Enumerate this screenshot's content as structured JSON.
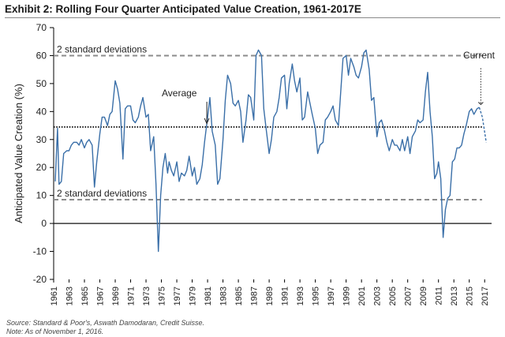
{
  "title": "Exhibit 2: Rolling Four Quarter Anticipated Value Creation, 1961-2017E",
  "footer": {
    "source": "Source: Standard & Poor's, Aswath Damodaran, Credit Suisse.",
    "note": "Note: As of November 1, 2016."
  },
  "colors": {
    "line": "#3A6FA8",
    "band": "#8c8c8c",
    "average": "#111111",
    "zero": "#111111"
  },
  "chart_data": {
    "type": "line",
    "title": "Exhibit 2: Rolling Four Quarter Anticipated Value Creation, 1961-2017E",
    "ylabel": "Anticipated Value Creation (%)",
    "xlabel": "",
    "xlim": [
      1961,
      2017.9
    ],
    "ylim": [
      -20,
      70
    ],
    "yticks": [
      -20,
      -10,
      0,
      10,
      20,
      30,
      40,
      50,
      60,
      70
    ],
    "xticks": [
      "1961",
      "1963",
      "1965",
      "1967",
      "1969",
      "1971",
      "1973",
      "1975",
      "1977",
      "1979",
      "1981",
      "1983",
      "1985",
      "1987",
      "1989",
      "1991",
      "1993",
      "1995",
      "1997",
      "1999",
      "2001",
      "2003",
      "2005",
      "2007",
      "2009",
      "2011",
      "2013",
      "2015",
      "2017"
    ],
    "grid": false,
    "reference_lines": [
      {
        "label": "2 standard deviations",
        "y": 60,
        "style": "dashed"
      },
      {
        "label": "Average",
        "y": 34.5,
        "style": "dotted"
      },
      {
        "label": "2 standard deviations",
        "y": 8.5,
        "style": "dashed"
      }
    ],
    "annotations": [
      {
        "text": "Current",
        "x": 2016.5,
        "y": 41
      }
    ],
    "series": [
      {
        "values": [
          [
            1961.2,
            15
          ],
          [
            1961.5,
            34
          ],
          [
            1961.7,
            14
          ],
          [
            1962.0,
            15
          ],
          [
            1962.3,
            25
          ],
          [
            1962.7,
            26
          ],
          [
            1963.0,
            26
          ],
          [
            1963.3,
            28
          ],
          [
            1963.6,
            29
          ],
          [
            1964.0,
            29
          ],
          [
            1964.3,
            28
          ],
          [
            1964.6,
            30
          ],
          [
            1965.0,
            27
          ],
          [
            1965.3,
            29
          ],
          [
            1965.6,
            30
          ],
          [
            1966.0,
            28
          ],
          [
            1966.3,
            13
          ],
          [
            1966.6,
            22
          ],
          [
            1967.0,
            32
          ],
          [
            1967.3,
            38
          ],
          [
            1967.6,
            38
          ],
          [
            1968.0,
            35
          ],
          [
            1968.3,
            39
          ],
          [
            1968.6,
            40
          ],
          [
            1969.0,
            51
          ],
          [
            1969.3,
            48
          ],
          [
            1969.6,
            43
          ],
          [
            1970.0,
            23
          ],
          [
            1970.3,
            41
          ],
          [
            1970.6,
            42
          ],
          [
            1971.0,
            42
          ],
          [
            1971.3,
            37
          ],
          [
            1971.6,
            36
          ],
          [
            1972.0,
            38
          ],
          [
            1972.3,
            42
          ],
          [
            1972.6,
            45
          ],
          [
            1973.0,
            38
          ],
          [
            1973.3,
            39
          ],
          [
            1973.6,
            26
          ],
          [
            1974.0,
            31
          ],
          [
            1974.3,
            14
          ],
          [
            1974.6,
            -10
          ],
          [
            1974.9,
            10
          ],
          [
            1975.2,
            20
          ],
          [
            1975.5,
            25
          ],
          [
            1975.8,
            18
          ],
          [
            1976.0,
            22
          ],
          [
            1976.3,
            19
          ],
          [
            1976.6,
            17
          ],
          [
            1977.0,
            22
          ],
          [
            1977.3,
            15
          ],
          [
            1977.6,
            18
          ],
          [
            1978.0,
            17
          ],
          [
            1978.3,
            19
          ],
          [
            1978.6,
            24
          ],
          [
            1979.0,
            17
          ],
          [
            1979.3,
            20
          ],
          [
            1979.6,
            14
          ],
          [
            1980.0,
            16
          ],
          [
            1980.3,
            21
          ],
          [
            1980.6,
            29
          ],
          [
            1981.0,
            38
          ],
          [
            1981.3,
            45
          ],
          [
            1981.6,
            33
          ],
          [
            1982.0,
            28
          ],
          [
            1982.3,
            14
          ],
          [
            1982.6,
            16
          ],
          [
            1983.0,
            30
          ],
          [
            1983.3,
            44
          ],
          [
            1983.6,
            53
          ],
          [
            1984.0,
            50
          ],
          [
            1984.3,
            43
          ],
          [
            1984.6,
            42
          ],
          [
            1985.0,
            44
          ],
          [
            1985.3,
            40
          ],
          [
            1985.6,
            29
          ],
          [
            1986.0,
            37
          ],
          [
            1986.3,
            46
          ],
          [
            1986.6,
            45
          ],
          [
            1987.0,
            37
          ],
          [
            1987.3,
            60
          ],
          [
            1987.6,
            62
          ],
          [
            1988.0,
            60
          ],
          [
            1988.3,
            41
          ],
          [
            1988.6,
            34
          ],
          [
            1989.0,
            25
          ],
          [
            1989.3,
            30
          ],
          [
            1989.6,
            38
          ],
          [
            1990.0,
            40
          ],
          [
            1990.3,
            45
          ],
          [
            1990.6,
            52
          ],
          [
            1991.0,
            53
          ],
          [
            1991.3,
            41
          ],
          [
            1991.6,
            50
          ],
          [
            1992.0,
            57
          ],
          [
            1992.3,
            51
          ],
          [
            1992.6,
            47
          ],
          [
            1993.0,
            52
          ],
          [
            1993.3,
            37
          ],
          [
            1993.6,
            38
          ],
          [
            1994.0,
            47
          ],
          [
            1994.3,
            43
          ],
          [
            1994.6,
            39
          ],
          [
            1995.0,
            34
          ],
          [
            1995.3,
            25
          ],
          [
            1995.6,
            28
          ],
          [
            1996.0,
            29
          ],
          [
            1996.3,
            37
          ],
          [
            1996.6,
            38
          ],
          [
            1997.0,
            40
          ],
          [
            1997.3,
            42
          ],
          [
            1997.6,
            37
          ],
          [
            1998.0,
            35
          ],
          [
            1998.3,
            47
          ],
          [
            1998.6,
            59
          ],
          [
            1999.0,
            60
          ],
          [
            1999.3,
            53
          ],
          [
            1999.6,
            59
          ],
          [
            2000.0,
            56
          ],
          [
            2000.3,
            53
          ],
          [
            2000.6,
            52
          ],
          [
            2001.0,
            56
          ],
          [
            2001.3,
            61
          ],
          [
            2001.6,
            62
          ],
          [
            2002.0,
            55
          ],
          [
            2002.3,
            44
          ],
          [
            2002.6,
            45
          ],
          [
            2003.0,
            31
          ],
          [
            2003.3,
            36
          ],
          [
            2003.6,
            37
          ],
          [
            2004.0,
            33
          ],
          [
            2004.3,
            29
          ],
          [
            2004.6,
            26
          ],
          [
            2005.0,
            30
          ],
          [
            2005.3,
            28
          ],
          [
            2005.6,
            28
          ],
          [
            2006.0,
            26
          ],
          [
            2006.3,
            30
          ],
          [
            2006.6,
            26
          ],
          [
            2007.0,
            31
          ],
          [
            2007.3,
            25
          ],
          [
            2007.6,
            31
          ],
          [
            2008.0,
            33
          ],
          [
            2008.3,
            37
          ],
          [
            2008.6,
            36
          ],
          [
            2009.0,
            37
          ],
          [
            2009.3,
            47
          ],
          [
            2009.6,
            54
          ],
          [
            2009.9,
            40
          ],
          [
            2010.2,
            31
          ],
          [
            2010.5,
            16
          ],
          [
            2010.8,
            18
          ],
          [
            2011.0,
            22
          ],
          [
            2011.3,
            16
          ],
          [
            2011.6,
            -5
          ],
          [
            2011.9,
            5
          ],
          [
            2012.2,
            9
          ],
          [
            2012.5,
            10
          ],
          [
            2012.8,
            22
          ],
          [
            2013.1,
            23
          ],
          [
            2013.4,
            27
          ],
          [
            2013.7,
            27
          ],
          [
            2014.0,
            28
          ],
          [
            2014.3,
            32
          ],
          [
            2014.6,
            35
          ],
          [
            2015.0,
            40
          ],
          [
            2015.3,
            41
          ],
          [
            2015.6,
            39
          ],
          [
            2016.0,
            41
          ],
          [
            2016.3,
            41.5
          ]
        ]
      },
      {
        "style": "dashed",
        "values": [
          [
            2016.3,
            41.5
          ],
          [
            2016.7,
            38
          ],
          [
            2017.2,
            29
          ]
        ]
      }
    ]
  }
}
